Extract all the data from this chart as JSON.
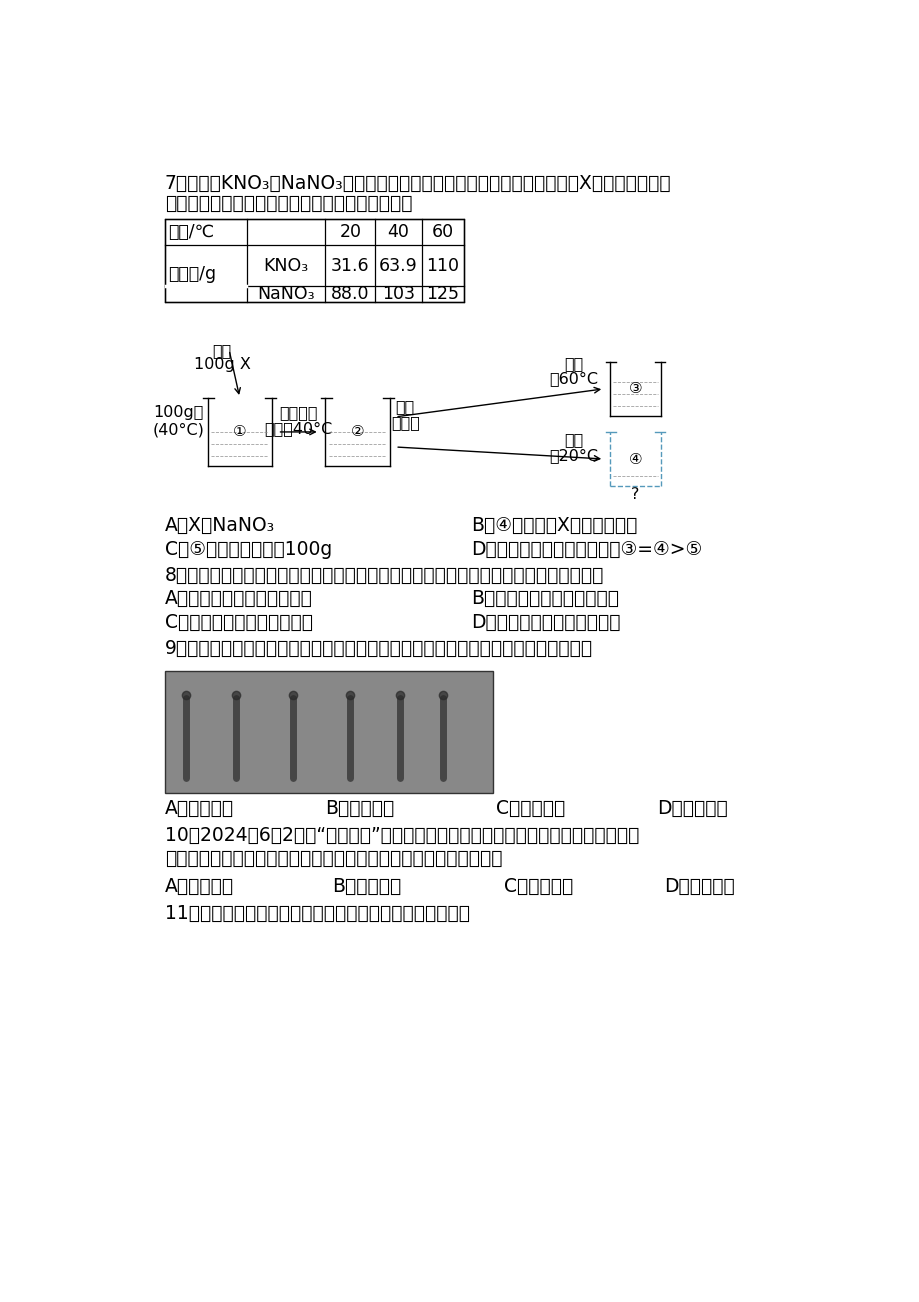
{
  "bg_color": "#ffffff",
  "q7_stem1": "7．如表是KNO₃和NaNO₃在不同温度时的溶解度，小明用其中一种物质（X）进行了如图所",
  "q7_stem2": "示的实验（水蔒发忽略不计）。下列分析错误的是",
  "kno3_vals": [
    "31.6",
    "63.9",
    "110"
  ],
  "nano3_vals": [
    "88.0",
    "103",
    "125"
  ],
  "temp_vals": [
    "20",
    "40",
    "60"
  ],
  "q7_A": "A．X为NaNO₃",
  "q7_B": "B．④中溶液为X的不饱和溶液",
  "q7_C": "C．⑤中溶液的质量为100g",
  "q7_D": "D．溶液中溶质的质量分数：③=④>⑤",
  "q8_stem": "8．推动绳色发展，建设美丽家乡是我们共同的追求。下列做法不利于实现这一目标的是",
  "q8_A": "A．积极植树造林，防沙降尘",
  "q8_B": "B．大力推广使用一次性餐具",
  "q8_C": "C．回收废旧电器，节约资源",
  "q8_D": "D．农业上合理施用化学肂料",
  "q9_stem": "9．如图所示为我国唐代名画《捣练图》。画卷呼现的工序中一定发生了化学变化的是",
  "q9_A": "A．捶打织品",
  "q9_B": "B．梳理丝线",
  "q9_C": "C．缝制衣物",
  "q9_D": "D．烧炭熨烫",
  "q10_stem1": "10．2024年6月2日，“幧娥六号”在月球背面成功着陆，当环境温度过高时，其自备的",
  "q10_stem2": "降温装置能通过冰的升华达到降温目的。冰升华的过程中，水分子的",
  "q10_A": "A．间隔增大",
  "q10_B": "B．质量增大",
  "q10_C": "C．种类改变",
  "q10_D": "D．数目改变",
  "q11_stem": "11．如图所示为电动起重机的工作场景。下列说法正确的是"
}
